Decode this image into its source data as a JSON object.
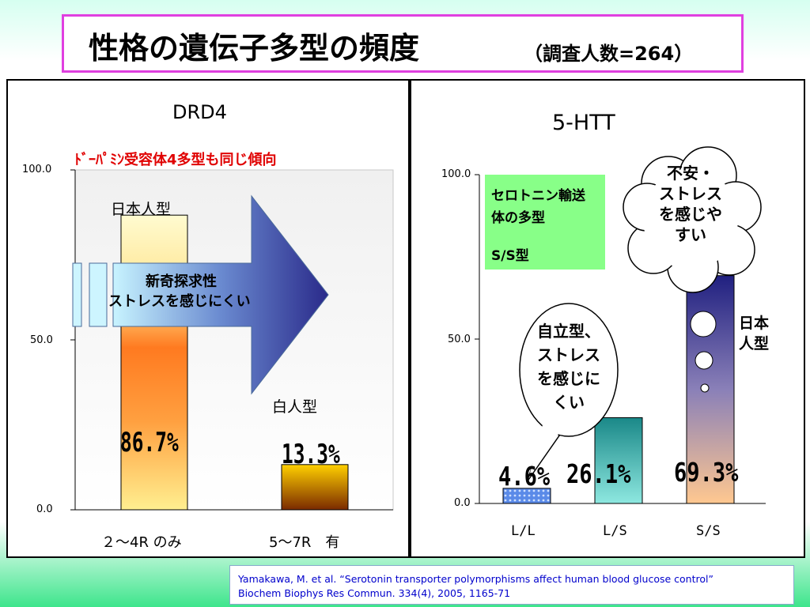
{
  "title": "性格の遺伝子多型の頻度",
  "subtitle": "（調査人数=264）",
  "charts": {
    "left": {
      "title": "DRD4",
      "note": "ﾄﾞｰﾊﾟﾐﾝ受容体4多型も同じ傾向",
      "yticks": [
        "100.0",
        "50.0",
        "0.0"
      ],
      "arrow_text": [
        "新奇探求性",
        "ストレスを感じにくい"
      ],
      "group_labels": [
        "日本人型",
        "白人型"
      ]
    },
    "right": {
      "title": "5-HTT",
      "yticks": [
        "100.0",
        "50.0",
        "0.0"
      ],
      "box_text": [
        "セロトニン輸送",
        "体の多型",
        "S/S型"
      ],
      "cloud_text": [
        "不安・",
        "ストレス",
        "を感じや",
        "すい"
      ],
      "bubble_text": [
        "自立型、",
        "ストレス",
        "を感じに",
        "くい"
      ],
      "side_label": [
        "日本",
        "人型"
      ]
    }
  },
  "chart_data": [
    {
      "type": "bar",
      "title": "DRD4",
      "categories": [
        "２～4R のみ",
        "5～7R　有"
      ],
      "values": [
        86.7,
        13.3
      ],
      "data_labels": [
        "86.7%",
        "13.3%"
      ],
      "ylim": [
        0,
        100
      ],
      "grid": false
    },
    {
      "type": "bar",
      "title": "5-HTT",
      "categories": [
        "L/L",
        "L/S",
        "S/S"
      ],
      "values": [
        4.6,
        26.1,
        69.3
      ],
      "data_labels": [
        "4.6%",
        "26.1%",
        "69.3%"
      ],
      "ylim": [
        0,
        100
      ],
      "grid": false
    }
  ],
  "citation": [
    "Yamakawa, M. et al. “Serotonin transporter polymorphisms affect human blood glucose control”",
    "Biochem Biophys Res Commun. 334(4), 2005, 1165-71"
  ]
}
